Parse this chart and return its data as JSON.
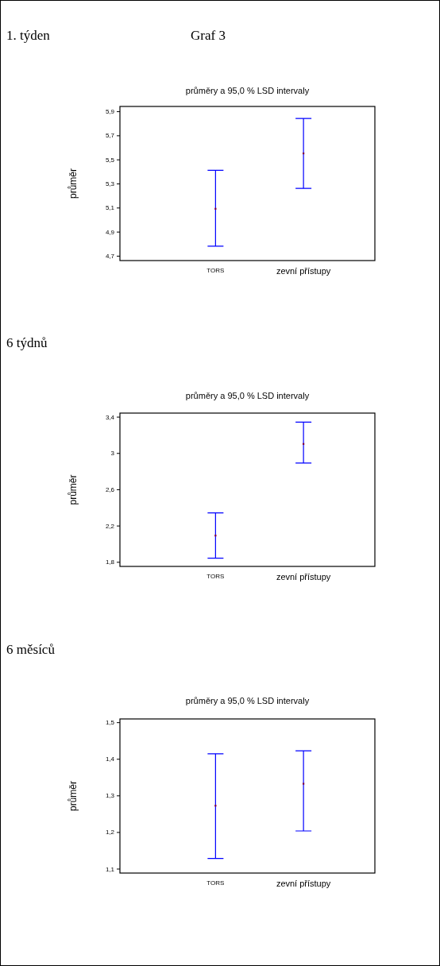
{
  "chart_data": [
    {
      "type": "scatter",
      "title": "průměry a 95,0 % LSD intervaly",
      "ylabel": "průměr",
      "annotations": [
        "1. týden",
        "Graf 3"
      ],
      "categories": [
        "TORS",
        "zevní přístupy"
      ],
      "marker": "square",
      "ylim": [
        4.66,
        5.94
      ],
      "yticks": [
        {
          "value": 4.7,
          "label": "4,7"
        },
        {
          "value": 4.9,
          "label": "4,9"
        },
        {
          "value": 5.1,
          "label": "5,1"
        },
        {
          "value": 5.3,
          "label": "5,3"
        },
        {
          "value": 5.5,
          "label": "5,5"
        },
        {
          "value": 5.7,
          "label": "5,7"
        },
        {
          "value": 5.9,
          "label": "5,9"
        }
      ],
      "series": [
        {
          "color": "#800040",
          "values": [
            5.09,
            5.55
          ],
          "errors": [
            [
              4.78,
              5.41
            ],
            [
              5.26,
              5.84
            ]
          ]
        }
      ]
    },
    {
      "type": "scatter",
      "title": "průměry a 95,0 % LSD intervaly",
      "ylabel": "průměr",
      "annotations": [
        "6 týdnů"
      ],
      "categories": [
        "TORS",
        "zevní přístupy"
      ],
      "marker": "square",
      "ylim": [
        1.75,
        3.44
      ],
      "yticks": [
        {
          "value": 1.8,
          "label": "1,8"
        },
        {
          "value": 2.2,
          "label": "2,2"
        },
        {
          "value": 2.6,
          "label": "2,6"
        },
        3,
        {
          "value": 3.4,
          "label": "3,4"
        }
      ],
      "series": [
        {
          "color": "#800040",
          "values": [
            2.09,
            3.1
          ],
          "errors": [
            [
              1.84,
              2.34
            ],
            [
              2.89,
              3.34
            ]
          ]
        }
      ]
    },
    {
      "type": "scatter",
      "title": "průměry a 95,0 % LSD intervaly",
      "ylabel": "průměr",
      "annotations": [
        "6 měsíců"
      ],
      "categories": [
        "TORS",
        "zevní přístupy"
      ],
      "marker": "square",
      "ylim": [
        1.088,
        1.509
      ],
      "yticks": [
        {
          "value": 1.1,
          "label": "1,1"
        },
        {
          "value": 1.2,
          "label": "1,2"
        },
        {
          "value": 1.3,
          "label": "1,3"
        },
        {
          "value": 1.4,
          "label": "1,4"
        },
        {
          "value": 1.5,
          "label": "1,5"
        }
      ],
      "series": [
        {
          "color": "#800040",
          "values": [
            1.272,
            1.332
          ],
          "errors": [
            [
              1.128,
              1.414
            ],
            [
              1.203,
              1.422
            ]
          ]
        }
      ]
    }
  ]
}
